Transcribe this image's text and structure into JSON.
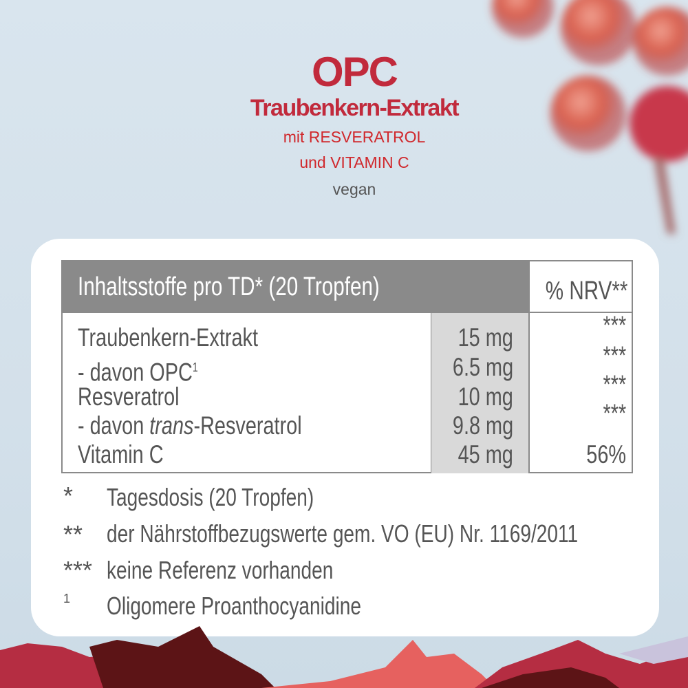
{
  "header": {
    "title": "OPC",
    "subtitle": "Traubenkern-Extrakt",
    "line1": "mit RESVERATROL",
    "line2": "und VITAMIN C",
    "tag": "vegan"
  },
  "table": {
    "header": "Inhaltsstoffe pro TD* (20 Tropfen)",
    "nrv_header": "% NRV**",
    "rows": [
      {
        "name": "Traubenkern-Extrakt",
        "amount": "15 mg",
        "nrv": "***"
      },
      {
        "name_prefix": "- davon OPC",
        "sup": "1",
        "amount": "6.5 mg",
        "nrv": "***"
      },
      {
        "name": "Resveratrol",
        "amount": "10 mg",
        "nrv": "***"
      },
      {
        "name_prefix": "- davon ",
        "name_italic": "trans",
        "name_suffix": "-Resveratrol",
        "amount": "9.8 mg",
        "nrv": "***"
      },
      {
        "name": "Vitamin C",
        "amount": "45 mg",
        "nrv": "56%"
      }
    ]
  },
  "footnotes": [
    {
      "mark": "*",
      "text": "Tagesdosis (20 Tropfen)"
    },
    {
      "mark": "**",
      "text": "der Nährstoffbezugswerte gem. VO (EU) Nr. 1169/2011"
    },
    {
      "mark": "***",
      "text": "keine Referenz vorhanden"
    },
    {
      "mark": "1",
      "text": "Oligomere Proanthocyanidine"
    }
  ],
  "colors": {
    "brand_red": "#c12a3c",
    "header_gray": "#8a8a8a",
    "amount_bg": "#d9d9d9"
  }
}
